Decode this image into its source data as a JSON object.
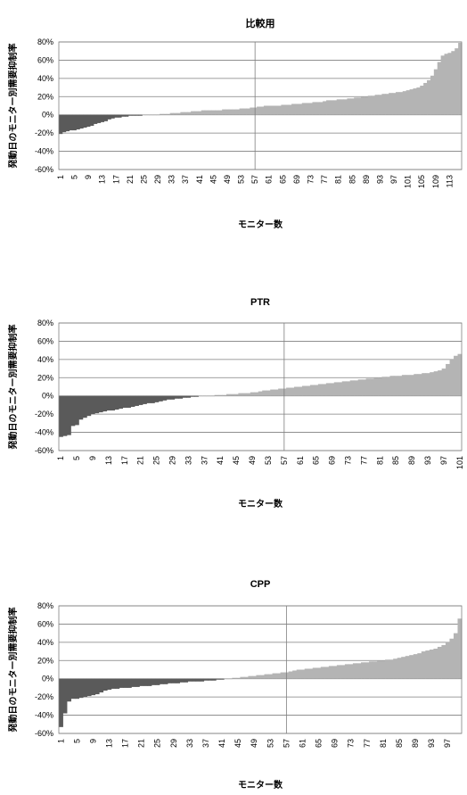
{
  "chart_data": [
    {
      "type": "bar",
      "title": "比較用",
      "xlabel": "モニター数",
      "ylabel": "発動日のモニター別需要抑制率",
      "ylim": [
        -60,
        80
      ],
      "y_ticks": [
        -60,
        -40,
        -20,
        0,
        20,
        40,
        60,
        80
      ],
      "x_tick_labels": [
        "1",
        "5",
        "9",
        "13",
        "17",
        "21",
        "25",
        "29",
        "33",
        "37",
        "41",
        "45",
        "49",
        "53",
        "57",
        "61",
        "65",
        "69",
        "73",
        "77",
        "81",
        "85",
        "89",
        "93",
        "97",
        "101",
        "105",
        "109",
        "113"
      ],
      "n": 116,
      "marker_at": 57,
      "values": [
        -21,
        -19,
        -18,
        -17,
        -17,
        -16,
        -15,
        -14,
        -13,
        -12,
        -10,
        -9,
        -8,
        -7,
        -5,
        -4,
        -3,
        -3,
        -2,
        -2,
        -1,
        -1,
        -1,
        -1,
        0,
        0,
        0,
        0,
        0,
        1,
        1,
        1,
        2,
        2,
        2,
        3,
        3,
        3,
        4,
        4,
        4,
        5,
        5,
        5,
        5,
        5,
        5,
        6,
        6,
        6,
        6,
        6,
        7,
        7,
        7,
        8,
        8,
        9,
        9,
        10,
        10,
        10,
        10,
        10,
        11,
        11,
        11,
        12,
        12,
        12,
        13,
        13,
        13,
        14,
        14,
        14,
        15,
        16,
        16,
        16,
        17,
        17,
        17,
        18,
        18,
        19,
        19,
        20,
        20,
        21,
        21,
        22,
        22,
        23,
        23,
        24,
        24,
        25,
        25,
        26,
        27,
        28,
        29,
        30,
        32,
        35,
        38,
        43,
        50,
        58,
        65,
        67,
        68,
        70,
        73,
        79
      ]
    },
    {
      "type": "bar",
      "title": "PTR",
      "xlabel": "モニター数",
      "ylabel": "発動日のモニター別需要抑制率",
      "ylim": [
        -60,
        80
      ],
      "y_ticks": [
        -60,
        -40,
        -20,
        0,
        20,
        40,
        60,
        80
      ],
      "x_tick_labels": [
        "1",
        "5",
        "9",
        "13",
        "17",
        "21",
        "25",
        "29",
        "33",
        "37",
        "41",
        "45",
        "49",
        "53",
        "57",
        "61",
        "65",
        "69",
        "73",
        "77",
        "81",
        "85",
        "89",
        "93",
        "97",
        "101"
      ],
      "n": 101,
      "marker_at": 57,
      "values": [
        -45,
        -44,
        -43,
        -33,
        -32,
        -26,
        -24,
        -22,
        -20,
        -19,
        -18,
        -17,
        -16,
        -16,
        -15,
        -14,
        -13,
        -13,
        -12,
        -11,
        -10,
        -9,
        -8,
        -8,
        -7,
        -6,
        -5,
        -4,
        -4,
        -3,
        -3,
        -2,
        -2,
        -1,
        -1,
        0,
        0,
        0,
        0,
        1,
        1,
        1,
        2,
        2,
        2,
        3,
        3,
        3,
        4,
        4,
        5,
        6,
        6,
        7,
        7,
        8,
        8,
        9,
        9,
        10,
        10,
        11,
        11,
        12,
        12,
        13,
        13,
        14,
        14,
        15,
        15,
        16,
        16,
        17,
        17,
        18,
        18,
        19,
        19,
        20,
        20,
        21,
        21,
        22,
        22,
        22,
        23,
        23,
        23,
        24,
        24,
        25,
        25,
        26,
        27,
        28,
        30,
        35,
        40,
        44,
        46
      ]
    },
    {
      "type": "bar",
      "title": "CPP",
      "xlabel": "モニター数",
      "ylabel": "発動日のモニター別需要抑制率",
      "ylim": [
        -60,
        80
      ],
      "y_ticks": [
        -60,
        -40,
        -20,
        0,
        20,
        40,
        60,
        80
      ],
      "x_tick_labels": [
        "1",
        "5",
        "9",
        "13",
        "17",
        "21",
        "25",
        "29",
        "33",
        "37",
        "41",
        "45",
        "49",
        "53",
        "57",
        "61",
        "65",
        "69",
        "73",
        "77",
        "81",
        "85",
        "89",
        "93",
        "97"
      ],
      "n": 100,
      "marker_at": 57,
      "values": [
        -53,
        -38,
        -25,
        -22,
        -22,
        -21,
        -20,
        -19,
        -18,
        -17,
        -15,
        -13,
        -12,
        -11,
        -11,
        -10,
        -10,
        -10,
        -9,
        -9,
        -8,
        -8,
        -8,
        -7,
        -7,
        -6,
        -6,
        -5,
        -5,
        -5,
        -4,
        -4,
        -3,
        -3,
        -3,
        -3,
        -2,
        -2,
        -2,
        -1,
        -1,
        0,
        0,
        1,
        1,
        2,
        2,
        3,
        3,
        4,
        4,
        5,
        5,
        6,
        6,
        7,
        7,
        8,
        9,
        10,
        10,
        11,
        11,
        12,
        12,
        13,
        13,
        14,
        14,
        15,
        15,
        16,
        16,
        17,
        17,
        18,
        18,
        19,
        19,
        20,
        20,
        21,
        21,
        22,
        23,
        24,
        25,
        26,
        27,
        28,
        30,
        31,
        32,
        33,
        35,
        37,
        40,
        44,
        50,
        66
      ]
    }
  ],
  "colors": {
    "negative": "#5a5a5a",
    "positive": "#b4b4b4",
    "grid": "#7f7f7f",
    "marker": "#7f7f7f"
  }
}
